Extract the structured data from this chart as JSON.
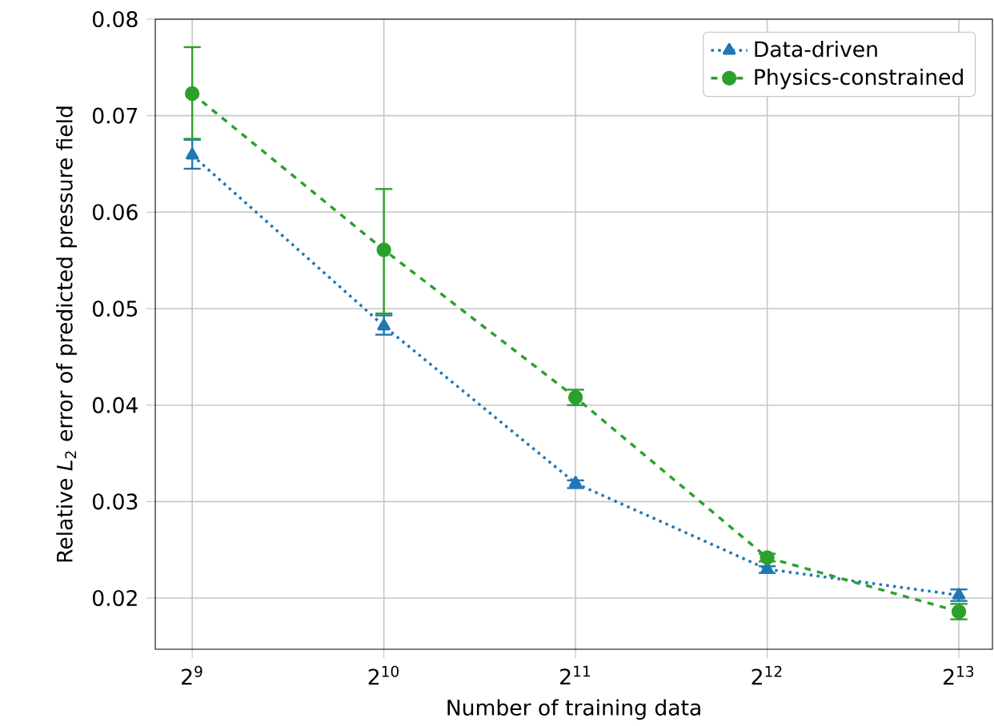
{
  "chart_data": {
    "type": "line",
    "xlabel": "Number of training data",
    "ylabel": "Relative *L*$_{2}$ error of predicted pressure field",
    "log": "x",
    "x": [
      512,
      1024,
      2048,
      4096,
      8192
    ],
    "xlim": [
      448,
      9250
    ],
    "xticks": [
      {
        "value": 512,
        "label": "2$^{9}$"
      },
      {
        "value": 1024,
        "label": "2$^{10}$"
      },
      {
        "value": 2048,
        "label": "2$^{11}$"
      },
      {
        "value": 4096,
        "label": "2$^{12}$"
      },
      {
        "value": 8192,
        "label": "2$^{13}$"
      }
    ],
    "ylim": [
      0.0147,
      0.08
    ],
    "yticks": [
      0.02,
      0.03,
      0.04,
      0.05,
      0.06,
      0.07,
      0.08
    ],
    "grid": true,
    "legend": "top right",
    "series": [
      {
        "name": "Data-driven",
        "color": "#1f77b4",
        "marker": "triangle",
        "line_style": "dotted",
        "values": [
          0.0659,
          0.0482,
          0.0319,
          0.023,
          0.0203
        ],
        "errors": [
          [
            0.0645,
            0.0675
          ],
          [
            0.0473,
            0.0493
          ],
          [
            0.0314,
            0.0322
          ],
          [
            0.0226,
            0.0233
          ],
          [
            0.0197,
            0.0209
          ]
        ]
      },
      {
        "name": "Physics-constrained",
        "color": "#2ca02c",
        "marker": "circle",
        "line_style": "dashed",
        "values": [
          0.0723,
          0.0561,
          0.0408,
          0.0242,
          0.0186
        ],
        "errors": [
          [
            0.0676,
            0.0771
          ],
          [
            0.0495,
            0.0624
          ],
          [
            0.04,
            0.0416
          ],
          [
            0.0238,
            0.0246
          ],
          [
            0.0178,
            0.0194
          ]
        ]
      }
    ]
  }
}
